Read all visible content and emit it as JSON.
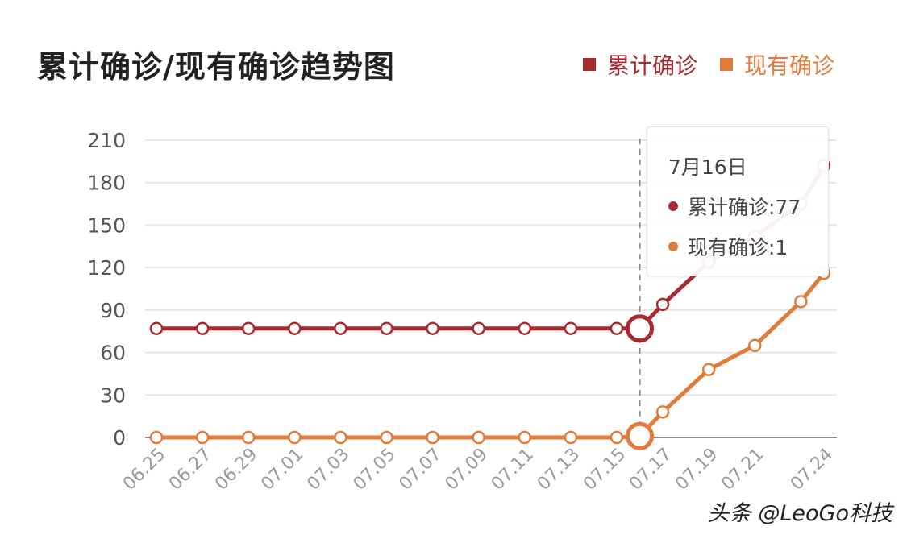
{
  "chart_data": {
    "type": "line",
    "title": "累计确诊/现有确诊趋势图",
    "xlabel": "",
    "ylabel": "",
    "ylim": [
      0,
      210
    ],
    "y_ticks": [
      "0",
      "30",
      "60",
      "90",
      "120",
      "150",
      "180",
      "210"
    ],
    "x_tick_labels": [
      "06.25",
      "06.27",
      "06.29",
      "07.01",
      "07.03",
      "07.05",
      "07.07",
      "07.09",
      "07.11",
      "07.13",
      "07.15",
      "07.17",
      "07.19",
      "07.21",
      "07.24"
    ],
    "grid": true,
    "legend": "top-right",
    "series": [
      {
        "name": "累计确诊",
        "color": "#a8292e",
        "points": [
          {
            "x": "06.25",
            "y": 77
          },
          {
            "x": "06.27",
            "y": 77
          },
          {
            "x": "06.29",
            "y": 77
          },
          {
            "x": "07.01",
            "y": 77
          },
          {
            "x": "07.03",
            "y": 77
          },
          {
            "x": "07.05",
            "y": 77
          },
          {
            "x": "07.07",
            "y": 77
          },
          {
            "x": "07.09",
            "y": 77
          },
          {
            "x": "07.11",
            "y": 77
          },
          {
            "x": "07.13",
            "y": 77
          },
          {
            "x": "07.15",
            "y": 77
          },
          {
            "x": "07.16",
            "y": 77
          },
          {
            "x": "07.17",
            "y": 94
          },
          {
            "x": "07.19",
            "y": 124
          },
          {
            "x": "07.21",
            "y": 142
          },
          {
            "x": "07.23",
            "y": 165
          },
          {
            "x": "07.24",
            "y": 192
          }
        ]
      },
      {
        "name": "现有确诊",
        "color": "#e07b39",
        "points": [
          {
            "x": "06.25",
            "y": 0
          },
          {
            "x": "06.27",
            "y": 0
          },
          {
            "x": "06.29",
            "y": 0
          },
          {
            "x": "07.01",
            "y": 0
          },
          {
            "x": "07.03",
            "y": 0
          },
          {
            "x": "07.05",
            "y": 0
          },
          {
            "x": "07.07",
            "y": 0
          },
          {
            "x": "07.09",
            "y": 0
          },
          {
            "x": "07.11",
            "y": 0
          },
          {
            "x": "07.13",
            "y": 0
          },
          {
            "x": "07.15",
            "y": 0
          },
          {
            "x": "07.16",
            "y": 1
          },
          {
            "x": "07.17",
            "y": 18
          },
          {
            "x": "07.19",
            "y": 48
          },
          {
            "x": "07.21",
            "y": 65
          },
          {
            "x": "07.23",
            "y": 96
          },
          {
            "x": "07.24",
            "y": 116
          }
        ]
      }
    ],
    "tooltip": {
      "date": "7月16日",
      "rows": [
        {
          "label": "累计确诊:77",
          "color": "#a8292e"
        },
        {
          "label": "现有确诊:1",
          "color": "#e07b39"
        }
      ]
    }
  },
  "watermark": "头条 @LeoGo科技"
}
